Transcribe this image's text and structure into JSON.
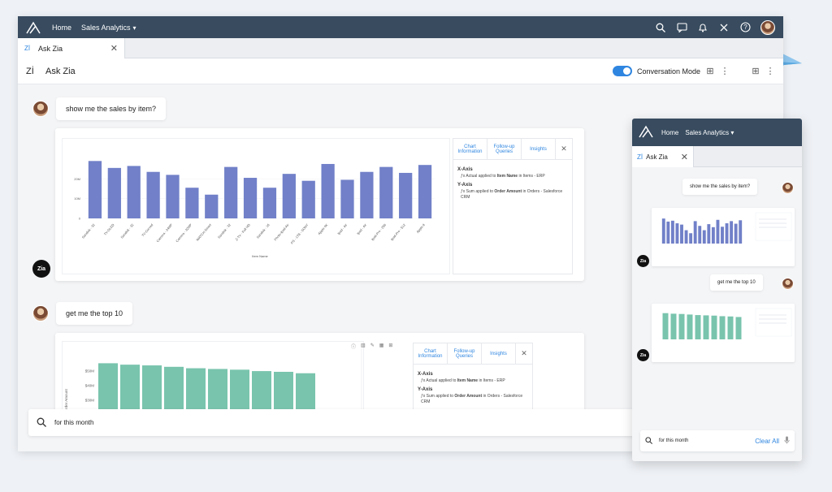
{
  "topbar": {
    "home": "Home",
    "workspace": "Sales Analytics"
  },
  "tab": {
    "label": "Ask Zia"
  },
  "subheader": {
    "title": "Ask Zia",
    "conversation_mode": "Conversation Mode"
  },
  "messages": [
    {
      "text": "show me the sales by item?"
    },
    {
      "text": "get me the top 10"
    }
  ],
  "colors": {
    "topbar": "#384b5f",
    "bar_blue": "#7180c8",
    "bar_teal": "#79c4ad",
    "accent": "#2f86e0"
  },
  "chart_data": [
    {
      "type": "bar",
      "categories": [
        "Sandisk - 32",
        "TV-OLED",
        "Sandisk - 32",
        "TV-Curved",
        "Camera - 24MP",
        "Camera - 32MP",
        "WATCH-Smart",
        "Sandisk - 32",
        "Z-TV - Full HD",
        "Sandisk - 16",
        "Photo-Ipad-Air",
        "PS - 1TB - SONY",
        "Apple 4K",
        "Ipad - Air",
        "Ipad - Air",
        "Ipad-Pro - 256",
        "Ipad-Pro - 512",
        "Apple 8"
      ],
      "values": [
        29,
        25.5,
        26.5,
        23.5,
        22,
        15.5,
        12,
        26,
        20.5,
        15.5,
        22.5,
        19,
        27.5,
        19.5,
        23.5,
        26,
        23,
        27
      ],
      "ylim": [
        0,
        32
      ],
      "yticks": [
        "0",
        "10M",
        "20M"
      ],
      "xlabel": "Item Name",
      "info_tabs": [
        "Chart Information",
        "Follow-up Queries",
        "Insights"
      ],
      "xaxis_title": "X-Axis",
      "xaxis_desc": {
        "prefix": "Actual",
        "mid1": "applied to",
        "field": "Item Name",
        "mid2": "in Items - ERP"
      },
      "yaxis_title": "Y-Axis",
      "yaxis_desc": {
        "prefix": "Sum",
        "mid1": "applied to",
        "field": "Order Amount",
        "mid2": "in Orders - Salesforce CRM"
      }
    },
    {
      "type": "bar",
      "values": [
        95,
        93,
        92,
        90,
        88,
        87,
        86,
        84,
        83,
        81
      ],
      "yticks": [
        "$50M",
        "$40M",
        "$30M"
      ],
      "ylabel": "Sum of Order Amount",
      "info_tabs": [
        "Chart Information",
        "Follow-up Queries",
        "Insights"
      ],
      "xaxis_title": "X-Axis",
      "xaxis_desc": {
        "prefix": "Actual",
        "mid1": "applied to",
        "field": "Item Name",
        "mid2": "in Items - ERP"
      },
      "yaxis_title": "Y-Axis",
      "yaxis_desc": {
        "prefix": "Sum",
        "mid1": "applied to",
        "field": "Order Amount",
        "mid2": "in Orders - Salesforce CRM"
      }
    }
  ],
  "search": {
    "value": "for this month"
  },
  "mobile": {
    "home": "Home",
    "workspace": "Sales Analytics",
    "tab": "Ask Zia",
    "msg1": "show me the sales by item?",
    "msg2": "get me the top 10",
    "search_value": "for this month",
    "clear_all": "Clear All"
  },
  "zia_badge": "Zia"
}
